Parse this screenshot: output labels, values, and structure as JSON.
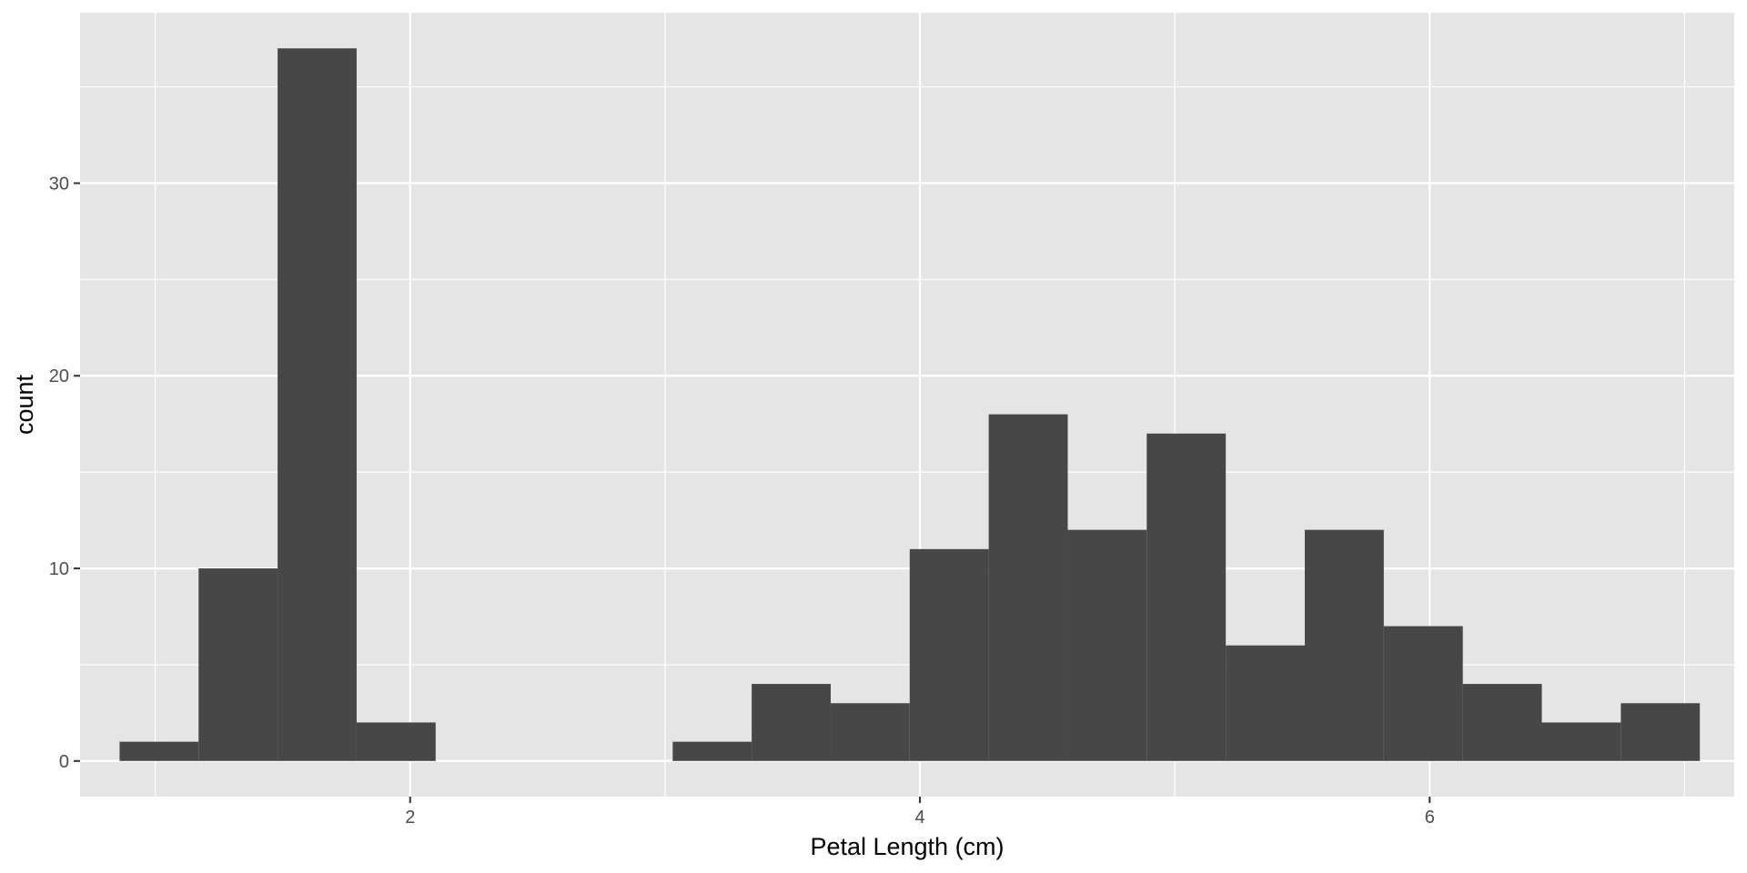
{
  "chart_data": {
    "type": "bar",
    "histogram": true,
    "title": "",
    "xlabel": "Petal Length (cm)",
    "ylabel": "count",
    "xlim": [
      0.705,
      7.195
    ],
    "ylim": [
      -1.85,
      38.85
    ],
    "x_ticks": [
      2,
      4,
      6
    ],
    "x_tick_labels": [
      "2",
      "4",
      "6"
    ],
    "x_minor_ticks": [
      1,
      3,
      5,
      7
    ],
    "y_ticks": [
      0,
      10,
      20,
      30
    ],
    "y_tick_labels": [
      "0",
      "10",
      "20",
      "30"
    ],
    "y_minor_ticks": [
      5,
      15,
      25,
      35
    ],
    "grid": true,
    "bin_width": 0.31,
    "bins": [
      {
        "x0": 0.86,
        "x1": 1.17,
        "count": 1
      },
      {
        "x0": 1.17,
        "x1": 1.48,
        "count": 10
      },
      {
        "x0": 1.48,
        "x1": 1.79,
        "count": 37
      },
      {
        "x0": 1.79,
        "x1": 2.1,
        "count": 2
      },
      {
        "x0": 2.1,
        "x1": 2.41,
        "count": 0
      },
      {
        "x0": 2.41,
        "x1": 2.72,
        "count": 0
      },
      {
        "x0": 2.72,
        "x1": 3.03,
        "count": 0
      },
      {
        "x0": 3.03,
        "x1": 3.34,
        "count": 1
      },
      {
        "x0": 3.34,
        "x1": 3.65,
        "count": 4
      },
      {
        "x0": 3.65,
        "x1": 3.96,
        "count": 3
      },
      {
        "x0": 3.96,
        "x1": 4.27,
        "count": 11
      },
      {
        "x0": 4.27,
        "x1": 4.58,
        "count": 18
      },
      {
        "x0": 4.58,
        "x1": 4.89,
        "count": 12
      },
      {
        "x0": 4.89,
        "x1": 5.2,
        "count": 17
      },
      {
        "x0": 5.2,
        "x1": 5.51,
        "count": 6
      },
      {
        "x0": 5.51,
        "x1": 5.82,
        "count": 12
      },
      {
        "x0": 5.82,
        "x1": 6.13,
        "count": 7
      },
      {
        "x0": 6.13,
        "x1": 6.44,
        "count": 4
      },
      {
        "x0": 6.44,
        "x1": 6.75,
        "count": 2
      },
      {
        "x0": 6.75,
        "x1": 7.06,
        "count": 3
      }
    ],
    "colors": {
      "panel_background": "#e5e5e5",
      "grid_line": "#ffffff",
      "bar_fill": "#474747",
      "tick_mark": "#333333",
      "tick_label": "#4d4d4d",
      "axis_title": "#000000"
    }
  }
}
